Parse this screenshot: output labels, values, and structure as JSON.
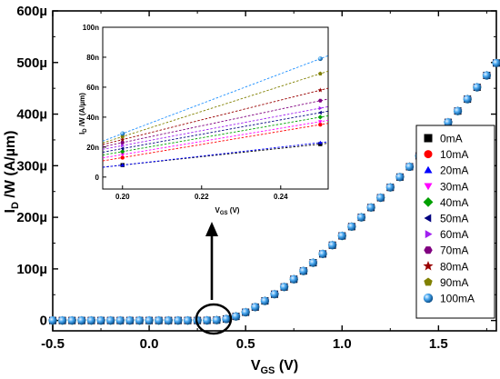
{
  "chart_data": [
    {
      "type": "scatter",
      "xlabel": "V",
      "xlabel_sub": "GS",
      "xlabel_unit": " (V)",
      "ylabel": "I",
      "ylabel_sub": "D",
      "ylabel_unit": " /W (A/µm)",
      "xlim": [
        -0.5,
        1.8
      ],
      "ylim": [
        -2e-05,
        0.0006
      ],
      "xticks": [
        -0.5,
        0.0,
        0.5,
        1.0,
        1.5
      ],
      "xtick_labels": [
        "-0.5",
        "0.0",
        "0.5",
        "1.0",
        "1.5"
      ],
      "yticks": [
        0,
        0.0001,
        0.0002,
        0.0003,
        0.0004,
        0.0005,
        0.0006
      ],
      "ytick_labels": [
        "0",
        "100µ",
        "200µ",
        "300µ",
        "400µ",
        "500µ",
        "600µ"
      ],
      "grid": false,
      "legend_position": "right",
      "x": [
        -0.5,
        -0.45,
        -0.4,
        -0.35,
        -0.3,
        -0.25,
        -0.2,
        -0.15,
        -0.1,
        -0.05,
        0.0,
        0.05,
        0.1,
        0.15,
        0.2,
        0.25,
        0.3,
        0.35,
        0.4,
        0.45,
        0.5,
        0.55,
        0.6,
        0.65,
        0.7,
        0.75,
        0.8,
        0.85,
        0.9,
        0.95,
        1.0,
        1.05,
        1.1,
        1.15,
        1.2,
        1.25,
        1.3,
        1.35,
        1.4,
        1.45,
        1.5,
        1.55,
        1.6,
        1.65,
        1.7,
        1.75,
        1.8
      ],
      "y": [
        0,
        0,
        0,
        0,
        0,
        0,
        0,
        0,
        0,
        0,
        0,
        0,
        0,
        0,
        0,
        0,
        2e-07,
        8e-07,
        3e-06,
        8e-06,
        1.6e-05,
        2.6e-05,
        3.8e-05,
        5.1e-05,
        6.5e-05,
        8e-05,
        9.6e-05,
        0.000112,
        0.000129,
        0.000146,
        0.000164,
        0.000182,
        0.0002,
        0.000219,
        0.000238,
        0.000258,
        0.000278,
        0.000298,
        0.000319,
        0.00034,
        0.000362,
        0.000384,
        0.000406,
        0.000429,
        0.000452,
        0.000475,
        0.000499
      ],
      "series": [
        {
          "name": "0mA",
          "color": "#000000",
          "marker": "square"
        },
        {
          "name": "10mA",
          "color": "#ff0000",
          "marker": "circle"
        },
        {
          "name": "20mA",
          "color": "#0000ff",
          "marker": "triangle-up"
        },
        {
          "name": "30mA",
          "color": "#ff00ff",
          "marker": "triangle-down"
        },
        {
          "name": "40mA",
          "color": "#00a000",
          "marker": "diamond"
        },
        {
          "name": "50mA",
          "color": "#000080",
          "marker": "triangle-left"
        },
        {
          "name": "60mA",
          "color": "#a020f0",
          "marker": "triangle-right"
        },
        {
          "name": "70mA",
          "color": "#800080",
          "marker": "hexagon"
        },
        {
          "name": "80mA",
          "color": "#990000",
          "marker": "star"
        },
        {
          "name": "90mA",
          "color": "#808000",
          "marker": "pentagon"
        },
        {
          "name": "100mA",
          "color": "#1e90ff",
          "marker": "sphere"
        }
      ]
    },
    {
      "type": "line",
      "xlabel": "V",
      "xlabel_sub": "GS",
      "xlabel_unit": " (V)",
      "ylabel": "I",
      "ylabel_sub": "D",
      "ylabel_unit": " /W (A/µm)",
      "xlim": [
        0.195,
        0.252
      ],
      "ylim": [
        -8e-09,
        1e-07
      ],
      "xticks": [
        0.2,
        0.22,
        0.24
      ],
      "xtick_labels": [
        "0.20",
        "0.22",
        "0.24"
      ],
      "yticks": [
        0,
        2e-08,
        4e-08,
        6e-08,
        8e-08,
        1e-07
      ],
      "ytick_labels": [
        "0",
        "20n",
        "40n",
        "60n",
        "80n",
        "100n"
      ],
      "grid": false,
      "x": [
        0.2,
        0.25
      ],
      "series": [
        {
          "name": "0mA",
          "values": [
            8e-09,
            2.2e-08
          ],
          "color": "#000000",
          "marker": "square"
        },
        {
          "name": "10mA",
          "values": [
            1.3e-08,
            3.5e-08
          ],
          "color": "#ff0000",
          "marker": "circle"
        },
        {
          "name": "20mA",
          "values": [
            8e-09,
            2.3e-08
          ],
          "color": "#0000ff",
          "marker": "triangle-up"
        },
        {
          "name": "30mA",
          "values": [
            1.5e-08,
            3.7e-08
          ],
          "color": "#ff00ff",
          "marker": "triangle-down"
        },
        {
          "name": "40mA",
          "values": [
            1.7e-08,
            4e-08
          ],
          "color": "#00a000",
          "marker": "diamond"
        },
        {
          "name": "50mA",
          "values": [
            1.9e-08,
            4.3e-08
          ],
          "color": "#000080",
          "marker": "triangle-left"
        },
        {
          "name": "60mA",
          "values": [
            2.1e-08,
            4.6e-08
          ],
          "color": "#a020f0",
          "marker": "triangle-right"
        },
        {
          "name": "70mA",
          "values": [
            2.3e-08,
            5.1e-08
          ],
          "color": "#800080",
          "marker": "hexagon"
        },
        {
          "name": "80mA",
          "values": [
            2.5e-08,
            5.8e-08
          ],
          "color": "#990000",
          "marker": "star"
        },
        {
          "name": "90mA",
          "values": [
            2.7e-08,
            6.9e-08
          ],
          "color": "#808000",
          "marker": "pentagon"
        },
        {
          "name": "100mA",
          "values": [
            2.9e-08,
            7.9e-08
          ],
          "color": "#1e90ff",
          "marker": "sphere"
        }
      ]
    }
  ]
}
